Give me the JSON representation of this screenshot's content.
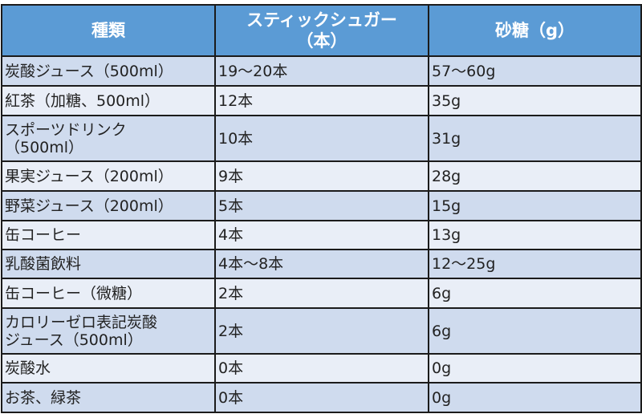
{
  "headers": [
    "種類",
    "スティックシュガー（本）",
    "砂糖（g）"
  ],
  "header_lines": {
    "col2_line1": "スティックシュガー",
    "col2_line2": "（本）"
  },
  "rows": [
    {
      "type": "炭酸ジュース（500ml）",
      "sticks": "19〜20本",
      "sugar": "57〜60g"
    },
    {
      "type": "紅茶（加糖、500ml）",
      "sticks": "12本",
      "sugar": "35g"
    },
    {
      "type": "スポーツドリンク（500ml）",
      "type_line1": "スポーツドリンク",
      "type_line2": "（500ml）",
      "sticks": "10本",
      "sugar": "31g"
    },
    {
      "type": "果実ジュース（200ml）",
      "sticks": "9本",
      "sugar": "28g"
    },
    {
      "type": "野菜ジュース（200ml）",
      "sticks": "5本",
      "sugar": "15g"
    },
    {
      "type": "缶コーヒー",
      "sticks": "4本",
      "sugar": "13g"
    },
    {
      "type": "乳酸菌飲料",
      "sticks": "4本〜8本",
      "sugar": "12〜25g"
    },
    {
      "type": "缶コーヒー（微糖）",
      "sticks": "2本",
      "sugar": "6g"
    },
    {
      "type": "カロリーゼロ表記炭酸ジュース（500ml）",
      "type_line1": "カロリーゼロ表記炭酸",
      "type_line2": "ジュース（500ml）",
      "sticks": "2本",
      "sugar": "6g"
    },
    {
      "type": "炭酸水",
      "sticks": "0本",
      "sugar": "0g"
    },
    {
      "type": "お茶、緑茶",
      "sticks": "0本",
      "sugar": "0g"
    }
  ],
  "colors": {
    "header": "#5b9bd5",
    "row_dark": "#cfdbee",
    "row_light": "#e9eef7"
  }
}
